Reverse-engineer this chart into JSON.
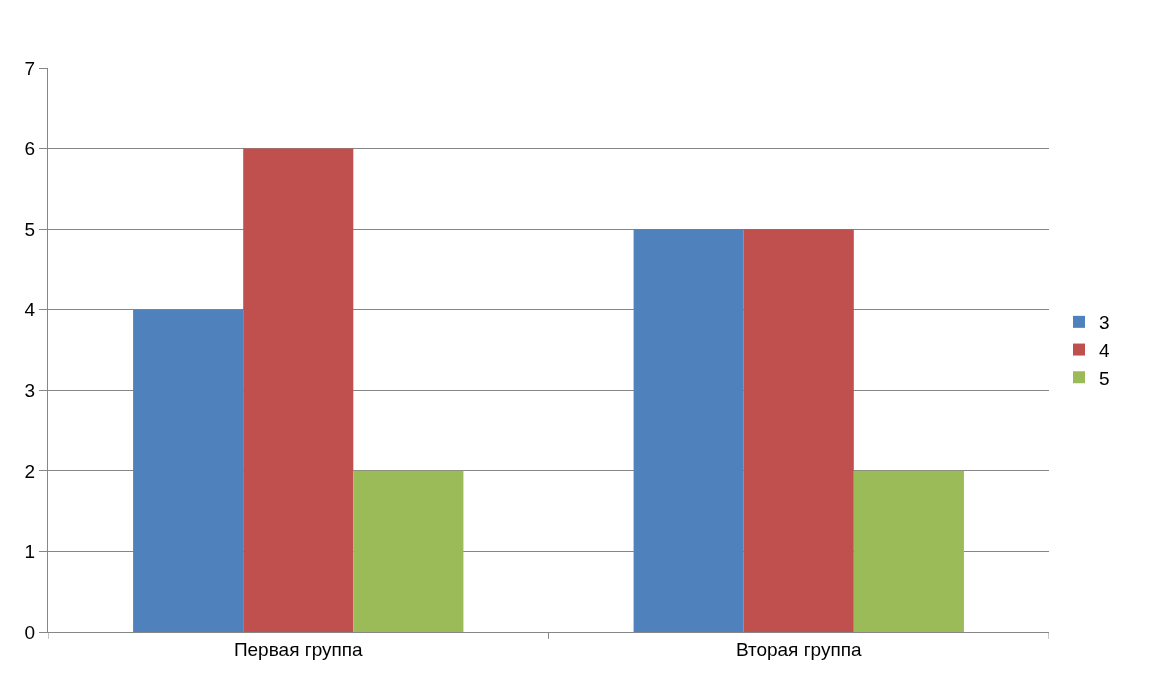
{
  "chart_data": {
    "type": "bar",
    "categories": [
      "Первая группа",
      "Вторая группа"
    ],
    "series": [
      {
        "name": "3",
        "color": "#4f81bd",
        "values": [
          4,
          5
        ]
      },
      {
        "name": "4",
        "color": "#c0504d",
        "values": [
          6,
          5
        ]
      },
      {
        "name": "5",
        "color": "#9bbb59",
        "values": [
          2,
          2
        ]
      }
    ],
    "ylim": [
      0,
      7
    ],
    "yticks": [
      0,
      1,
      2,
      3,
      4,
      5,
      6,
      7
    ],
    "grid": "y",
    "legend": "right"
  }
}
